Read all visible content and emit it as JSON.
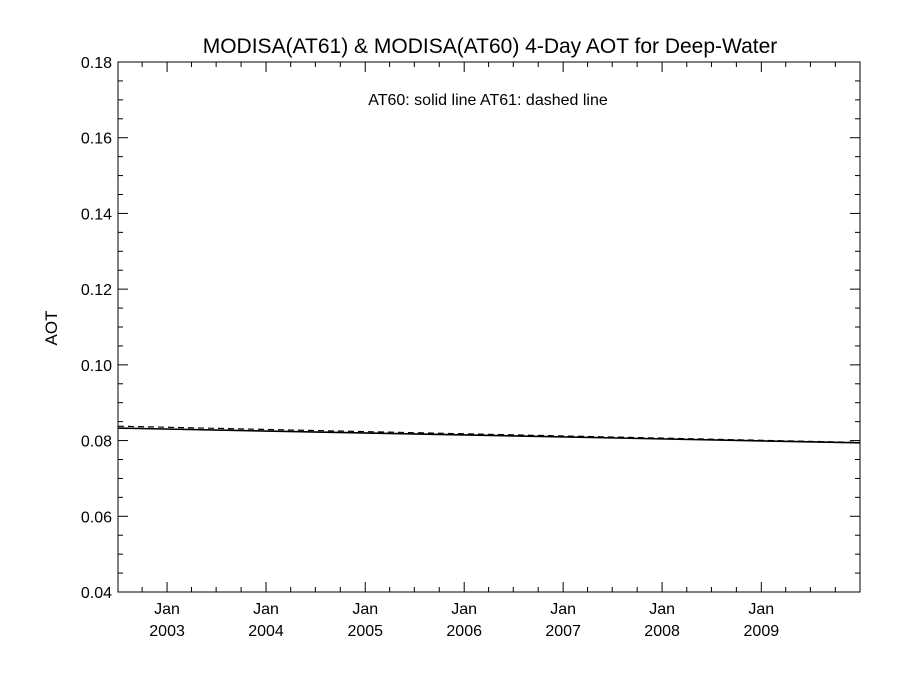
{
  "chart_data": {
    "type": "line",
    "title": "MODISA(AT61) & MODISA(AT60) 4-Day AOT for Deep-Water",
    "annotation": "AT60: solid line   AT61: dashed line",
    "xlabel": "",
    "ylabel": "AOT",
    "ylim": [
      0.04,
      0.18
    ],
    "yticks": [
      "0.04",
      "0.06",
      "0.08",
      "0.10",
      "0.12",
      "0.14",
      "0.16",
      "0.18"
    ],
    "xlim": [
      "2002-07-04",
      "2009-12-31"
    ],
    "xticks": [
      {
        "month": "Jan",
        "year": "2003",
        "date": "2003-01-01"
      },
      {
        "month": "Jan",
        "year": "2004",
        "date": "2004-01-01"
      },
      {
        "month": "Jan",
        "year": "2005",
        "date": "2005-01-01"
      },
      {
        "month": "Jan",
        "year": "2006",
        "date": "2006-01-01"
      },
      {
        "month": "Jan",
        "year": "2007",
        "date": "2007-01-01"
      },
      {
        "month": "Jan",
        "year": "2008",
        "date": "2008-01-01"
      },
      {
        "month": "Jan",
        "year": "2009",
        "date": "2009-01-01"
      }
    ],
    "grid": false,
    "series": [
      {
        "style": "solid",
        "color": "#000000",
        "x": [
          "2002-07-04",
          "2009-12-31"
        ],
        "y": [
          0.0833,
          0.0794
        ]
      },
      {
        "style": "dashed",
        "color": "#000000",
        "x": [
          "2002-07-04",
          "2009-12-31"
        ],
        "y": [
          0.0838,
          0.0795
        ]
      }
    ]
  }
}
